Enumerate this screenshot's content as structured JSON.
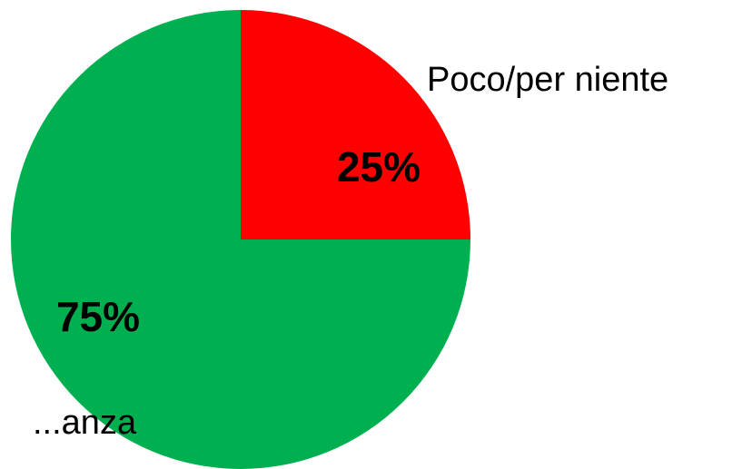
{
  "chart_data": {
    "type": "pie",
    "title": "",
    "slices": [
      {
        "label": "Poco/per niente",
        "value": 25,
        "value_label": "25%",
        "color": "#ff0000"
      },
      {
        "label": "...anza",
        "value": 75,
        "value_label": "75%",
        "color": "#00b050"
      }
    ],
    "start_angle": "12 o'clock",
    "direction": "clockwise",
    "legend": "none"
  }
}
